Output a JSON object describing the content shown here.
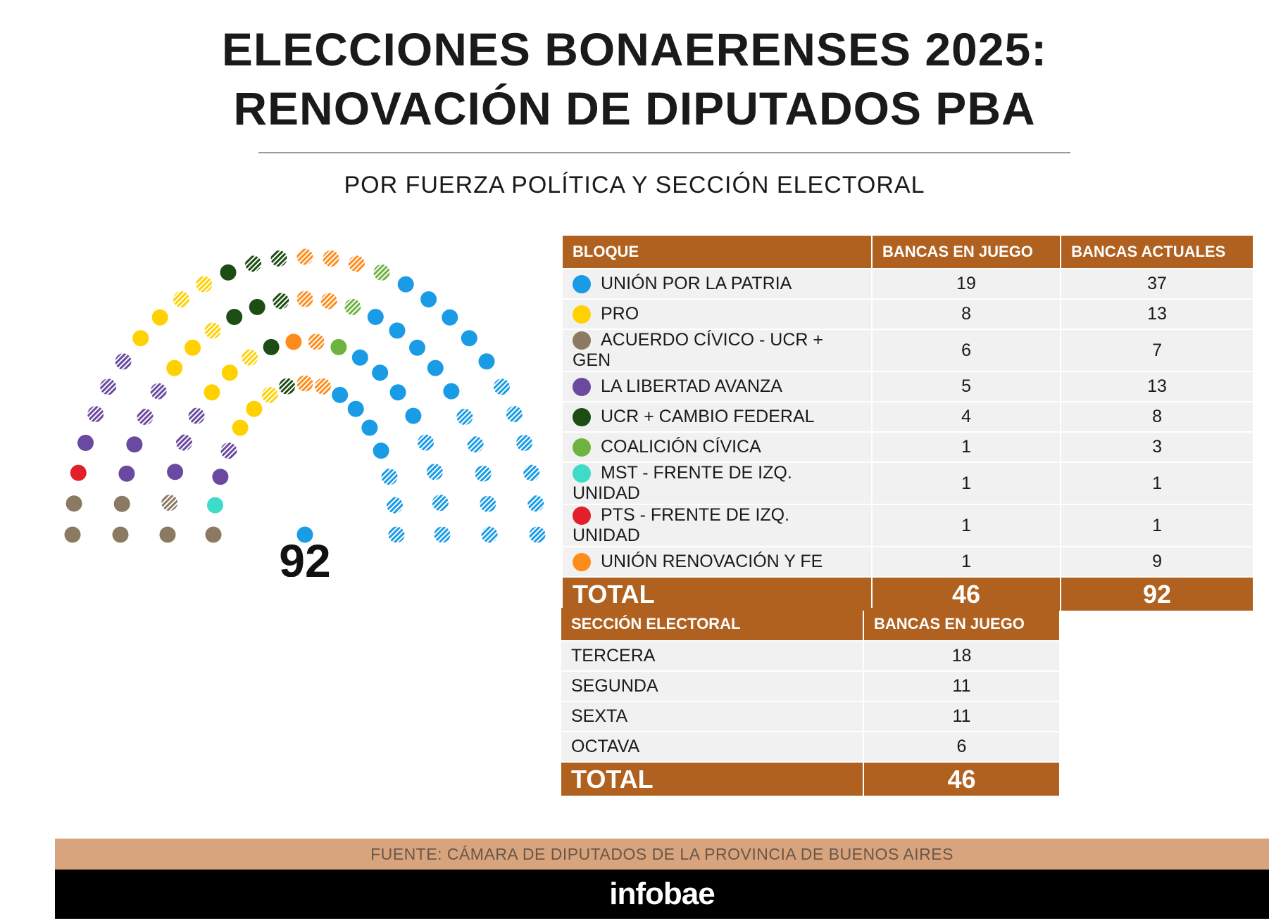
{
  "title_line1": "ELECCIONES BONAERENSES 2025:",
  "title_line2": "RENOVACIÓN DE DIPUTADOS PBA",
  "subtitle": "POR FUERZA POLÍTICA Y SECCIÓN ELECTORAL",
  "chart_data": {
    "type": "parliament",
    "total_seats": 92,
    "total_label": "92",
    "legend": "solid = bancas en juego, hatched = bancas que no se renuevan",
    "parties": [
      {
        "name": "ACUERDO CÍVICO - UCR + GEN",
        "color": "#8b7a62",
        "in_play": 6,
        "current": 7
      },
      {
        "name": "MST - FRENTE DE IZQ. UNIDAD",
        "color": "#3ddbc8",
        "in_play": 1,
        "current": 1
      },
      {
        "name": "PTS - FRENTE DE IZQ. UNIDAD",
        "color": "#e3202a",
        "in_play": 1,
        "current": 1
      },
      {
        "name": "LA LIBERTAD AVANZA",
        "color": "#6a4aa0",
        "in_play": 5,
        "current": 13
      },
      {
        "name": "PRO",
        "color": "#ffd100",
        "in_play": 8,
        "current": 13
      },
      {
        "name": "UCR + CAMBIO FEDERAL",
        "color": "#1d4d14",
        "in_play": 4,
        "current": 8
      },
      {
        "name": "UNIÓN RENOVACIÓN Y FE",
        "color": "#ff8c1a",
        "in_play": 1,
        "current": 9
      },
      {
        "name": "COALICIÓN CÍVICA",
        "color": "#6db33f",
        "in_play": 1,
        "current": 3
      },
      {
        "name": "UNIÓN POR LA PATRIA",
        "color": "#1a9be6",
        "in_play": 19,
        "current": 37
      }
    ]
  },
  "bloques": {
    "headers": [
      "BLOQUE",
      "BANCAS EN JUEGO",
      "BANCAS ACTUALES"
    ],
    "rows": [
      {
        "name": "UNIÓN POR LA PATRIA",
        "color": "#1a9be6",
        "en_juego": "19",
        "actuales": "37"
      },
      {
        "name": "PRO",
        "color": "#ffd100",
        "en_juego": "8",
        "actuales": "13"
      },
      {
        "name": "ACUERDO CÍVICO - UCR + GEN",
        "color": "#8b7a62",
        "en_juego": "6",
        "actuales": "7"
      },
      {
        "name": "LA LIBERTAD AVANZA",
        "color": "#6a4aa0",
        "en_juego": "5",
        "actuales": "13"
      },
      {
        "name": "UCR + CAMBIO FEDERAL",
        "color": "#1d4d14",
        "en_juego": "4",
        "actuales": "8"
      },
      {
        "name": "COALICIÓN CÍVICA",
        "color": "#6db33f",
        "en_juego": "1",
        "actuales": "3"
      },
      {
        "name": "MST - FRENTE DE IZQ. UNIDAD",
        "color": "#3ddbc8",
        "en_juego": "1",
        "actuales": "1"
      },
      {
        "name": "PTS - FRENTE DE IZQ. UNIDAD",
        "color": "#e3202a",
        "en_juego": "1",
        "actuales": "1"
      },
      {
        "name": "UNIÓN RENOVACIÓN Y FE",
        "color": "#ff8c1a",
        "en_juego": "1",
        "actuales": "9"
      }
    ],
    "total": {
      "label": "TOTAL",
      "en_juego": "46",
      "actuales": "92"
    }
  },
  "secciones": {
    "headers": [
      "SECCIÓN ELECTORAL",
      "BANCAS EN JUEGO"
    ],
    "rows": [
      {
        "name": "TERCERA",
        "en_juego": "18"
      },
      {
        "name": "SEGUNDA",
        "en_juego": "11"
      },
      {
        "name": "SEXTA",
        "en_juego": "11"
      },
      {
        "name": "OCTAVA",
        "en_juego": "6"
      }
    ],
    "total": {
      "label": "TOTAL",
      "en_juego": "46"
    }
  },
  "source": "FUENTE: CÁMARA DE DIPUTADOS DE LA PROVINCIA DE BUENOS AIRES",
  "brand": "infobae",
  "colors": {
    "header_brown": "#b0611f",
    "source_band": "#d8a47d"
  }
}
